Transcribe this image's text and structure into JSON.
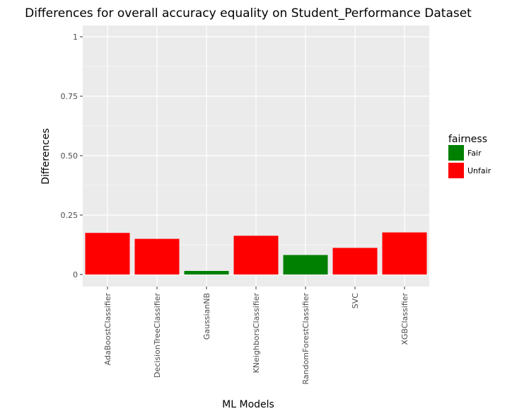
{
  "chart_data": {
    "type": "bar",
    "title": "Differences for overall accuracy equality on Student_Performance Dataset",
    "xlabel": "ML Models",
    "ylabel": "Differences",
    "ylim": [
      0,
      1
    ],
    "yticks": [
      0,
      0.25,
      0.5,
      0.75,
      1
    ],
    "ytick_labels": [
      "0",
      "0.25",
      "0.50",
      "0.75",
      "1"
    ],
    "grid": true,
    "legend_position": "right",
    "categories": [
      "AdaBoostClassifier",
      "DecisionTreeClassifier",
      "GaussianNB",
      "KNeighborsClassifier",
      "RandomForestClassifier",
      "SVC",
      "XGBClassifier"
    ],
    "values": [
      0.175,
      0.15,
      0.015,
      0.163,
      0.082,
      0.112,
      0.177
    ],
    "fairness": [
      "Unfair",
      "Unfair",
      "Fair",
      "Unfair",
      "Fair",
      "Unfair",
      "Unfair"
    ],
    "legend": {
      "title": "fairness",
      "entries": [
        {
          "label": "Fair",
          "color": "#008000"
        },
        {
          "label": "Unfair",
          "color": "#ff0000"
        }
      ]
    }
  },
  "colors": {
    "panel_background": "#ebebeb",
    "grid_major": "#ffffff",
    "fair": "#008000",
    "unfair": "#ff0000"
  }
}
